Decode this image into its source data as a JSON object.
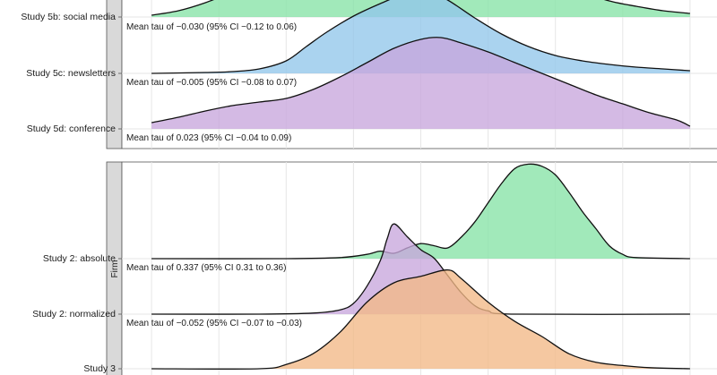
{
  "chart_data": {
    "type": "ridgeline",
    "title": "",
    "xlabel": "",
    "ylabel": "",
    "grid": true,
    "x_range": [
      -1,
      1
    ],
    "x_gridlines": [
      -0.8,
      -0.6,
      -0.4,
      -0.2,
      0,
      0.2,
      0.4,
      0.6,
      0.8
    ],
    "panels": [
      {
        "strip_label": "",
        "rows": [
          {
            "label": "Study 5b: social media",
            "annotation": "Mean tau of −0.030 (95% CI −0.12 to 0.06)",
            "color": "#86e3a6",
            "density": [
              [
                -0.8,
                0.02
              ],
              [
                -0.72,
                0.07
              ],
              [
                -0.64,
                0.16
              ],
              [
                -0.56,
                0.28
              ],
              [
                -0.48,
                0.4
              ],
              [
                -0.4,
                0.52
              ],
              [
                -0.32,
                0.66
              ],
              [
                -0.24,
                0.84
              ],
              [
                -0.16,
                1.0
              ],
              [
                -0.08,
                1.1
              ],
              [
                0,
                1.12
              ],
              [
                0.08,
                1.08
              ],
              [
                0.16,
                0.96
              ],
              [
                0.24,
                0.8
              ],
              [
                0.32,
                0.6
              ],
              [
                0.4,
                0.42
              ],
              [
                0.48,
                0.28
              ],
              [
                0.56,
                0.18
              ],
              [
                0.64,
                0.12
              ],
              [
                0.72,
                0.07
              ],
              [
                0.8,
                0.04
              ]
            ]
          },
          {
            "label": "Study 5c: newsletters",
            "annotation": "Mean tau of −0.005 (95% CI −0.08 to 0.07)",
            "color": "#92c6ea",
            "density": [
              [
                -0.8,
                0.0
              ],
              [
                -0.64,
                0.01
              ],
              [
                -0.56,
                0.02
              ],
              [
                -0.48,
                0.05
              ],
              [
                -0.4,
                0.14
              ],
              [
                -0.34,
                0.3
              ],
              [
                -0.28,
                0.46
              ],
              [
                -0.2,
                0.64
              ],
              [
                -0.12,
                0.78
              ],
              [
                -0.04,
                0.9
              ],
              [
                0.02,
                0.92
              ],
              [
                0.08,
                0.82
              ],
              [
                0.16,
                0.62
              ],
              [
                0.24,
                0.44
              ],
              [
                0.32,
                0.3
              ],
              [
                0.4,
                0.2
              ],
              [
                0.48,
                0.14
              ],
              [
                0.56,
                0.1
              ],
              [
                0.64,
                0.07
              ],
              [
                0.72,
                0.05
              ],
              [
                0.8,
                0.03
              ]
            ]
          },
          {
            "label": "Study 5d: conference",
            "annotation": "Mean tau of 0.023 (95% CI −0.04 to 0.09)",
            "color": "#c8a6dc",
            "density": [
              [
                -0.8,
                0.07
              ],
              [
                -0.72,
                0.13
              ],
              [
                -0.64,
                0.2
              ],
              [
                -0.56,
                0.26
              ],
              [
                -0.48,
                0.3
              ],
              [
                -0.4,
                0.34
              ],
              [
                -0.32,
                0.44
              ],
              [
                -0.24,
                0.58
              ],
              [
                -0.16,
                0.74
              ],
              [
                -0.08,
                0.9
              ],
              [
                0,
                1.0
              ],
              [
                0.06,
                1.02
              ],
              [
                0.12,
                0.96
              ],
              [
                0.2,
                0.86
              ],
              [
                0.28,
                0.74
              ],
              [
                0.36,
                0.62
              ],
              [
                0.44,
                0.5
              ],
              [
                0.52,
                0.38
              ],
              [
                0.6,
                0.28
              ],
              [
                0.68,
                0.18
              ],
              [
                0.76,
                0.1
              ],
              [
                0.8,
                0.03
              ]
            ]
          }
        ]
      },
      {
        "strip_label": "Firm",
        "rows": [
          {
            "label": "Study 2: absolute",
            "annotation": "Mean tau of 0.337 (95% CI 0.31 to 0.36)",
            "color": "#86e3a6",
            "density": [
              [
                -0.8,
                0.0
              ],
              [
                -0.4,
                0.0
              ],
              [
                -0.24,
                0.01
              ],
              [
                -0.16,
                0.04
              ],
              [
                -0.12,
                0.07
              ],
              [
                -0.08,
                0.05
              ],
              [
                -0.04,
                0.1
              ],
              [
                0,
                0.14
              ],
              [
                0.04,
                0.12
              ],
              [
                0.08,
                0.1
              ],
              [
                0.12,
                0.2
              ],
              [
                0.16,
                0.34
              ],
              [
                0.2,
                0.52
              ],
              [
                0.24,
                0.7
              ],
              [
                0.28,
                0.84
              ],
              [
                0.32,
                0.88
              ],
              [
                0.36,
                0.86
              ],
              [
                0.4,
                0.78
              ],
              [
                0.44,
                0.62
              ],
              [
                0.48,
                0.44
              ],
              [
                0.52,
                0.28
              ],
              [
                0.56,
                0.12
              ],
              [
                0.6,
                0.04
              ],
              [
                0.64,
                0.01
              ],
              [
                0.8,
                0.0
              ]
            ]
          },
          {
            "label": "Study 2: normalized",
            "annotation": "Mean tau of −0.052 (95% CI −0.07 to −0.03)",
            "color": "#c8a6dc",
            "density": [
              [
                -0.8,
                0.0
              ],
              [
                -0.48,
                0.0
              ],
              [
                -0.32,
                0.01
              ],
              [
                -0.24,
                0.04
              ],
              [
                -0.2,
                0.1
              ],
              [
                -0.16,
                0.26
              ],
              [
                -0.12,
                0.5
              ],
              [
                -0.1,
                0.7
              ],
              [
                -0.08,
                0.84
              ],
              [
                -0.04,
                0.72
              ],
              [
                0,
                0.6
              ],
              [
                0.04,
                0.52
              ],
              [
                0.08,
                0.36
              ],
              [
                0.12,
                0.2
              ],
              [
                0.16,
                0.08
              ],
              [
                0.2,
                0.03
              ],
              [
                0.28,
                0.0
              ],
              [
                0.8,
                0.0
              ]
            ]
          },
          {
            "label": "Study 3",
            "annotation": "",
            "color": "#f2b887",
            "density": [
              [
                -0.8,
                0.0
              ],
              [
                -0.48,
                0.0
              ],
              [
                -0.4,
                0.04
              ],
              [
                -0.32,
                0.14
              ],
              [
                -0.24,
                0.34
              ],
              [
                -0.16,
                0.62
              ],
              [
                -0.08,
                0.8
              ],
              [
                0,
                0.86
              ],
              [
                0.08,
                0.92
              ],
              [
                0.12,
                0.84
              ],
              [
                0.2,
                0.62
              ],
              [
                0.28,
                0.44
              ],
              [
                0.36,
                0.3
              ],
              [
                0.44,
                0.14
              ],
              [
                0.52,
                0.06
              ],
              [
                0.6,
                0.03
              ],
              [
                0.68,
                0.01
              ],
              [
                0.8,
                0.0
              ]
            ]
          }
        ]
      }
    ]
  }
}
